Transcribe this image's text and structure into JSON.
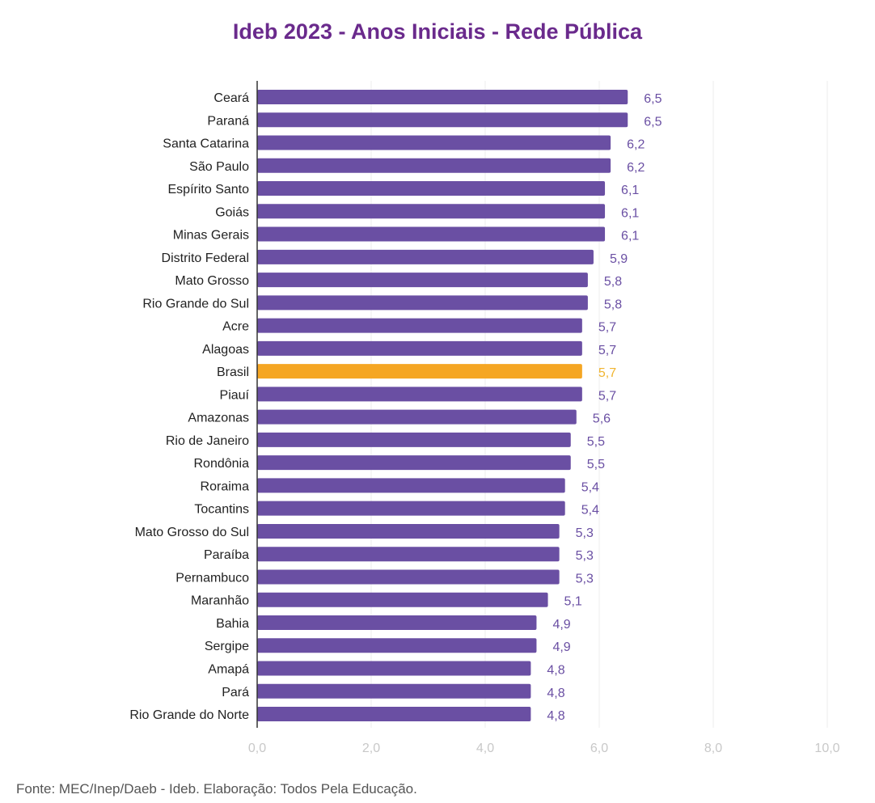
{
  "chart_data": {
    "type": "bar",
    "orientation": "horizontal",
    "title": "Ideb 2023 - Anos Iniciais - Rede Pública",
    "source": "Fonte: MEC/Inep/Daeb - Ideb. Elaboração: Todos Pela Educação.",
    "categories": [
      "Ceará",
      "Paraná",
      "Santa Catarina",
      "São Paulo",
      "Espírito Santo",
      "Goiás",
      "Minas Gerais",
      "Distrito Federal",
      "Mato Grosso",
      "Rio Grande do Sul",
      "Acre",
      "Alagoas",
      "Brasil",
      "Piauí",
      "Amazonas",
      "Rio de Janeiro",
      "Rondônia",
      "Roraima",
      "Tocantins",
      "Mato Grosso do Sul",
      "Paraíba",
      "Pernambuco",
      "Maranhão",
      "Bahia",
      "Sergipe",
      "Amapá",
      "Pará",
      "Rio Grande do Norte"
    ],
    "values": [
      6.5,
      6.5,
      6.2,
      6.2,
      6.1,
      6.1,
      6.1,
      5.9,
      5.8,
      5.8,
      5.7,
      5.7,
      5.7,
      5.7,
      5.6,
      5.5,
      5.5,
      5.4,
      5.4,
      5.3,
      5.3,
      5.3,
      5.1,
      4.9,
      4.9,
      4.8,
      4.8,
      4.8
    ],
    "data_labels": [
      "6,5",
      "6,5",
      "6,2",
      "6,2",
      "6,1",
      "6,1",
      "6,1",
      "5,9",
      "5,8",
      "5,8",
      "5,7",
      "5,7",
      "5,7",
      "5,7",
      "5,6",
      "5,5",
      "5,5",
      "5,4",
      "5,4",
      "5,3",
      "5,3",
      "5,3",
      "5,1",
      "4,9",
      "4,9",
      "4,8",
      "4,8",
      "4,8"
    ],
    "highlight": "Brasil",
    "xlim": [
      0,
      10
    ],
    "xticks": [
      0,
      2,
      4,
      6,
      8,
      10
    ],
    "xtick_labels": [
      "0,0",
      "2,0",
      "4,0",
      "6,0",
      "8,0",
      "10,0"
    ],
    "grid": "vertical",
    "colors": {
      "bar": "#6a4fa3",
      "highlight": "#f5a623",
      "label": "#6a4fa3",
      "highlight_label": "#f0b530",
      "grid": "#ececec",
      "title": "#6a2a8c"
    }
  }
}
